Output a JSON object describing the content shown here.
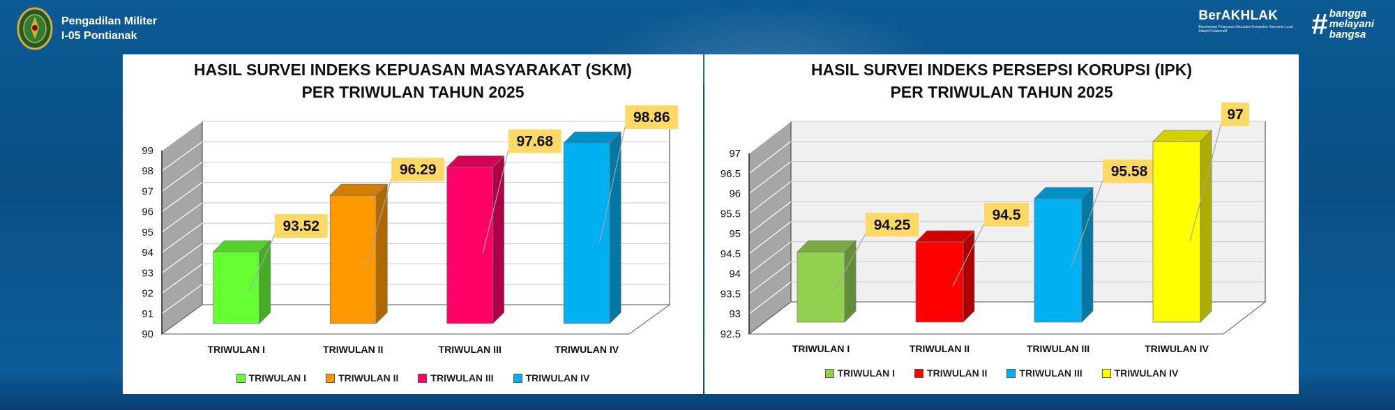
{
  "header": {
    "org_line1": "Pengadilan Militer",
    "org_line2": "I-05 Pontianak",
    "berakhlak": "BerAKHLAK",
    "berakhlak_tagline": "Berorientasi Pelayanan Akuntabel Kompeten Harmonis Loyal Adaptif Kolaboratif",
    "bangga": [
      "bangga",
      "melayani",
      "bangsa"
    ],
    "hash": "#"
  },
  "chart_data": [
    {
      "type": "bar",
      "title_line1": "HASIL SURVEI INDEKS KEPUASAN MASYARAKAT (SKM)",
      "title_line2": "PER TRIWULAN TAHUN 2025",
      "categories": [
        "TRIWULAN I",
        "TRIWULAN II",
        "TRIWULAN III",
        "TRIWULAN IV"
      ],
      "values": [
        93.52,
        96.29,
        97.68,
        98.86
      ],
      "value_labels": [
        "93.52",
        "96.29",
        "97.68",
        "98.86"
      ],
      "colors": [
        "#66ff33",
        "#ff9900",
        "#ff0066",
        "#00b0f0"
      ],
      "ylim": [
        90,
        99
      ],
      "yticks": [
        90,
        91,
        92,
        93,
        94,
        95,
        96,
        97,
        98,
        99
      ],
      "ytick_labels": [
        "90",
        "91",
        "92",
        "93",
        "94",
        "95",
        "96",
        "97",
        "98",
        "99"
      ],
      "legend": [
        "TRIWULAN I",
        "TRIWULAN II",
        "TRIWULAN III",
        "TRIWULAN IV"
      ],
      "legend_position": "bottom",
      "grid": true,
      "three_d": true,
      "wall_color": "#ffffff"
    },
    {
      "type": "bar",
      "title_line1": "HASIL SURVEI INDEKS PERSEPSI KORUPSI (IPK)",
      "title_line2": "PER TRIWULAN TAHUN 2025",
      "categories": [
        "TRIWULAN I",
        "TRIWULAN II",
        "TRIWULAN III",
        "TRIWULAN IV"
      ],
      "values": [
        94.25,
        94.5,
        95.58,
        97
      ],
      "value_labels": [
        "94.25",
        "94.5",
        "95.58",
        "97"
      ],
      "colors": [
        "#92d050",
        "#ff0000",
        "#00b0f0",
        "#ffff00"
      ],
      "ylim": [
        92.5,
        97
      ],
      "yticks": [
        92.5,
        93,
        93.5,
        94,
        94.5,
        95,
        95.5,
        96,
        96.5,
        97
      ],
      "ytick_labels": [
        "92.5",
        "93",
        "93.5",
        "94",
        "94.5",
        "95",
        "95.5",
        "96",
        "96.5",
        "97"
      ],
      "legend": [
        "TRIWULAN I",
        "TRIWULAN II",
        "TRIWULAN III",
        "TRIWULAN IV"
      ],
      "legend_position": "bottom",
      "grid": true,
      "three_d": true,
      "wall_color": "#f0f0f0"
    }
  ]
}
